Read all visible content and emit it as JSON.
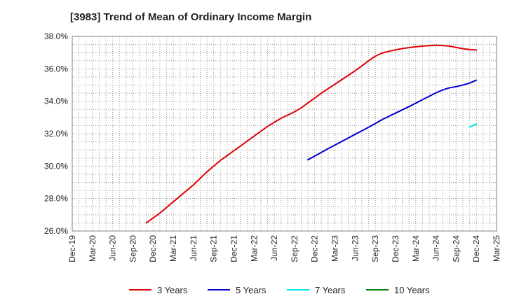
{
  "chart_data": {
    "type": "line",
    "title": "[3983]  Trend of Mean of Ordinary Income Margin",
    "xlabel": "",
    "ylabel": "",
    "ylim": [
      26.0,
      38.0
    ],
    "y_tick_labels": [
      "26.0%",
      "28.0%",
      "30.0%",
      "32.0%",
      "34.0%",
      "36.0%",
      "38.0%"
    ],
    "y_ticks": [
      26,
      28,
      30,
      32,
      34,
      36,
      38
    ],
    "x_tick_labels": [
      "Dec-19",
      "Mar-20",
      "Jun-20",
      "Sep-20",
      "Dec-20",
      "Mar-21",
      "Jun-21",
      "Sep-21",
      "Dec-21",
      "Mar-22",
      "Jun-22",
      "Sep-22",
      "Dec-22",
      "Mar-23",
      "Jun-23",
      "Sep-23",
      "Dec-23",
      "Mar-24",
      "Jun-24",
      "Sep-24",
      "Dec-24",
      "Mar-25"
    ],
    "grid": true,
    "legend_position": "bottom",
    "series": [
      {
        "name": "3 Years",
        "color": "#e00000",
        "x": [
          "Nov-20",
          "Dec-20",
          "Jan-21",
          "Feb-21",
          "Mar-21",
          "Apr-21",
          "May-21",
          "Jun-21",
          "Jul-21",
          "Aug-21",
          "Sep-21",
          "Oct-21",
          "Nov-21",
          "Dec-21",
          "Jan-22",
          "Feb-22",
          "Mar-22",
          "Apr-22",
          "May-22",
          "Jun-22",
          "Jul-22",
          "Aug-22",
          "Sep-22",
          "Oct-22",
          "Nov-22",
          "Dec-22",
          "Jan-23",
          "Feb-23",
          "Mar-23",
          "Apr-23",
          "May-23",
          "Jun-23",
          "Jul-23",
          "Aug-23",
          "Sep-23",
          "Oct-23",
          "Nov-23",
          "Dec-23",
          "Jan-24",
          "Feb-24",
          "Mar-24",
          "Apr-24",
          "May-24",
          "Jun-24",
          "Jul-24",
          "Aug-24",
          "Sep-24",
          "Oct-24",
          "Nov-24",
          "Dec-24"
        ],
        "values": [
          26.5,
          26.8,
          27.1,
          27.45,
          27.8,
          28.15,
          28.5,
          28.85,
          29.25,
          29.65,
          30.0,
          30.35,
          30.65,
          30.95,
          31.25,
          31.55,
          31.85,
          32.15,
          32.45,
          32.7,
          32.95,
          33.15,
          33.35,
          33.6,
          33.9,
          34.2,
          34.5,
          34.78,
          35.05,
          35.33,
          35.6,
          35.88,
          36.18,
          36.5,
          36.78,
          36.97,
          37.08,
          37.17,
          37.25,
          37.31,
          37.36,
          37.4,
          37.43,
          37.45,
          37.44,
          37.4,
          37.32,
          37.24,
          37.19,
          37.16
        ]
      },
      {
        "name": "5 Years",
        "color": "#0000cc",
        "x": [
          "Nov-22",
          "Dec-22",
          "Jan-23",
          "Feb-23",
          "Mar-23",
          "Apr-23",
          "May-23",
          "Jun-23",
          "Jul-23",
          "Aug-23",
          "Sep-23",
          "Oct-23",
          "Nov-23",
          "Dec-23",
          "Jan-24",
          "Feb-24",
          "Mar-24",
          "Apr-24",
          "May-24",
          "Jun-24",
          "Jul-24",
          "Aug-24",
          "Sep-24",
          "Oct-24",
          "Nov-24",
          "Dec-24"
        ],
        "values": [
          30.4,
          30.62,
          30.85,
          31.08,
          31.3,
          31.52,
          31.74,
          31.96,
          32.18,
          32.4,
          32.63,
          32.87,
          33.07,
          33.27,
          33.47,
          33.67,
          33.88,
          34.1,
          34.31,
          34.52,
          34.7,
          34.83,
          34.9,
          35.0,
          35.12,
          35.3
        ]
      },
      {
        "name": "7 Years",
        "color": "#00e5e5",
        "x": [
          "Nov-24",
          "Dec-24"
        ],
        "values": [
          32.4,
          32.6
        ]
      },
      {
        "name": "10 Years",
        "color": "#008000",
        "x": [],
        "values": []
      }
    ]
  }
}
